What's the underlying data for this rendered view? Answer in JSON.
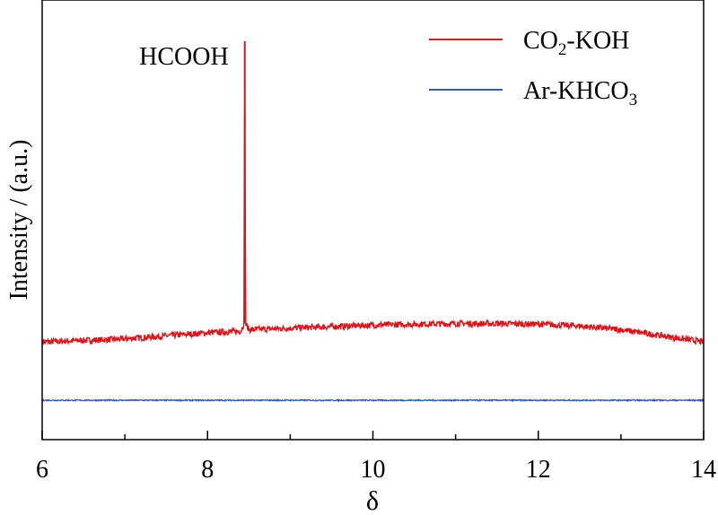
{
  "chart_data": {
    "type": "line",
    "xlabel": "δ",
    "ylabel": "Intensity / (a.u.)",
    "xlim": [
      6,
      14
    ],
    "x_ticks": [
      "6",
      "8",
      "10",
      "12",
      "14"
    ],
    "y_ticks_labeled": false,
    "grid": false,
    "legend_position": "top-right",
    "annotations": [
      {
        "text": "HCOOH",
        "x": 8.45
      }
    ],
    "series": [
      {
        "name": "CO₂-KOH",
        "name_base": "CO",
        "name_sub": "2",
        "name_tail": "-KOH",
        "color": "#d9141b",
        "x": [
          6.0,
          6.5,
          7.0,
          7.5,
          8.0,
          8.4,
          8.44,
          8.45,
          8.46,
          8.5,
          9.0,
          9.5,
          10.0,
          10.5,
          11.0,
          11.5,
          12.0,
          12.5,
          13.0,
          13.5,
          14.0
        ],
        "y": [
          0.02,
          0.025,
          0.03,
          0.04,
          0.05,
          0.055,
          0.08,
          1.0,
          0.08,
          0.06,
          0.065,
          0.07,
          0.075,
          0.078,
          0.08,
          0.08,
          0.078,
          0.072,
          0.06,
          0.04,
          0.02
        ],
        "noise": 0.01
      },
      {
        "name": "Ar-KHCO₃",
        "name_base": "Ar-KHCO",
        "name_sub": "3",
        "name_tail": "",
        "color": "#3a5a9c",
        "x": [
          6.0,
          8.0,
          10.0,
          12.0,
          14.0
        ],
        "y": [
          -0.17,
          -0.17,
          -0.17,
          -0.17,
          -0.17
        ],
        "noise": 0.002
      }
    ]
  }
}
